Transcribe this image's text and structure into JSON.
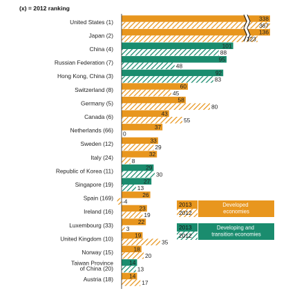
{
  "ranking_note": "(x) = 2012 ranking",
  "colors": {
    "developed": "#E8961E",
    "developing": "#1A8C6E",
    "axis": "#222222"
  },
  "legend": {
    "developed": {
      "year_top": "2013",
      "year_bottom": "2012",
      "label": "Developed economies"
    },
    "developing": {
      "year_top": "2013",
      "year_bottom": "2012",
      "label": "Developing and transition economies"
    }
  },
  "chart_data": {
    "type": "bar",
    "orientation": "horizontal",
    "categories": [
      "United States (1)",
      "Japan (2)",
      "China (4)",
      "Russian Federation (7)",
      "Hong Kong, China (3)",
      "Switzerland (8)",
      "Germany (5)",
      "Canada (6)",
      "Netherlands (66)",
      "Sweden (12)",
      "Italy (24)",
      "Republic of Korea (11)",
      "Singapore (19)",
      "Spain (169)",
      "Ireland (16)",
      "Luxembourg (33)",
      "United Kingdom (10)",
      "Norway (15)",
      "Taiwan Province of China (20)",
      "Austria (18)"
    ],
    "group": [
      "developed",
      "developed",
      "developing",
      "developing",
      "developing",
      "developed",
      "developed",
      "developed",
      "developed",
      "developed",
      "developed",
      "developing",
      "developing",
      "developed",
      "developed",
      "developed",
      "developed",
      "developed",
      "developing",
      "developed"
    ],
    "series": [
      {
        "name": "2013",
        "values": [
          338,
          136,
          101,
          95,
          92,
          60,
          58,
          43,
          37,
          33,
          32,
          29,
          27,
          26,
          23,
          22,
          19,
          18,
          14,
          14
        ]
      },
      {
        "name": "2012",
        "values": [
          367,
          123,
          88,
          48,
          83,
          45,
          80,
          55,
          0,
          29,
          8,
          30,
          13,
          -4,
          19,
          3,
          35,
          20,
          13,
          17
        ]
      }
    ],
    "axis_break": true,
    "xlim": [
      0,
      140
    ],
    "legend_position": "bottom-right"
  }
}
